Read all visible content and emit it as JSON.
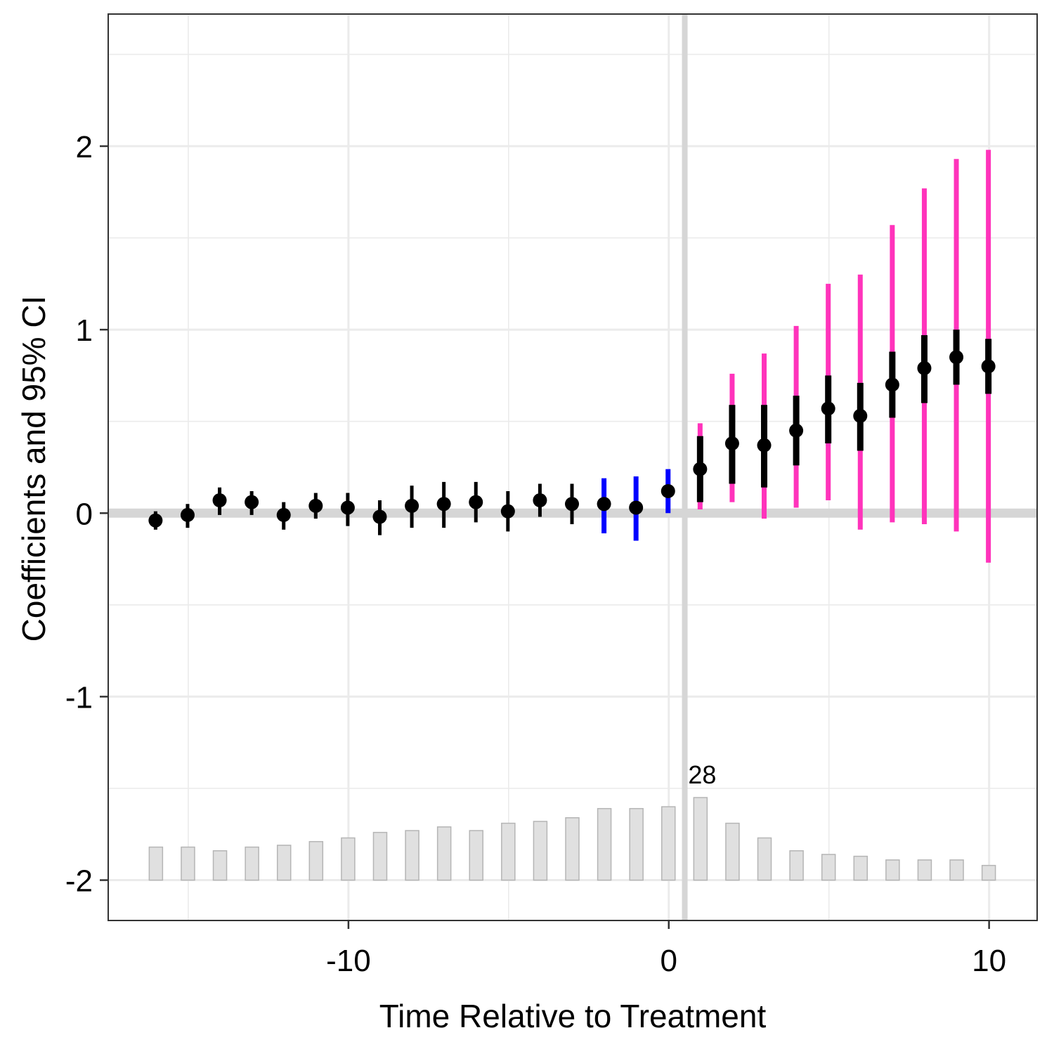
{
  "chart_data": {
    "type": "scatter",
    "title": "",
    "xlabel": "Time Relative to Treatment",
    "ylabel": "Coefficients and 95% CI",
    "xlim": [
      -17.5,
      11.5
    ],
    "ylim": [
      -2.22,
      2.72
    ],
    "x_ticks": [
      -10,
      0,
      10
    ],
    "x_tick_labels": [
      "-10",
      "0",
      "10"
    ],
    "y_ticks": [
      -2,
      -1,
      0,
      1,
      2
    ],
    "y_tick_labels": [
      "-2",
      "-1",
      "0",
      "1",
      "2"
    ],
    "grid": true,
    "legend": "none",
    "reference_lines": {
      "h": 0,
      "v": 0.5
    },
    "series": [
      {
        "x": [
          -16,
          -15,
          -14,
          -13,
          -12,
          -11,
          -10,
          -9,
          -8,
          -7,
          -6,
          -5,
          -4,
          -3,
          -2,
          -1,
          0,
          1,
          2,
          3,
          4,
          5,
          6,
          7,
          8,
          9,
          10
        ],
        "estimate": [
          -0.04,
          -0.01,
          0.07,
          0.06,
          -0.01,
          0.04,
          0.03,
          -0.02,
          0.04,
          0.05,
          0.06,
          0.01,
          0.07,
          0.05,
          0.05,
          0.03,
          0.12,
          0.24,
          0.38,
          0.37,
          0.45,
          0.57,
          0.53,
          0.7,
          0.79,
          0.85,
          0.8
        ],
        "ci_low": [
          -0.09,
          -0.08,
          -0.01,
          -0.01,
          -0.09,
          -0.03,
          -0.07,
          -0.12,
          -0.08,
          -0.08,
          -0.05,
          -0.1,
          -0.02,
          -0.06,
          -0.11,
          -0.15,
          0.0,
          0.06,
          0.16,
          0.14,
          0.26,
          0.38,
          0.34,
          0.52,
          0.6,
          0.7,
          0.65
        ],
        "ci_high": [
          0.01,
          0.05,
          0.14,
          0.12,
          0.06,
          0.11,
          0.11,
          0.07,
          0.15,
          0.17,
          0.17,
          0.12,
          0.16,
          0.16,
          0.19,
          0.2,
          0.24,
          0.42,
          0.59,
          0.59,
          0.64,
          0.75,
          0.71,
          0.88,
          0.97,
          1.0,
          0.95
        ],
        "alt_ci_low": [
          null,
          null,
          null,
          null,
          null,
          null,
          null,
          null,
          null,
          null,
          null,
          null,
          null,
          null,
          null,
          null,
          null,
          0.02,
          0.06,
          -0.03,
          0.03,
          0.07,
          -0.09,
          -0.05,
          -0.06,
          -0.1,
          -0.27
        ],
        "alt_ci_high": [
          null,
          null,
          null,
          null,
          null,
          null,
          null,
          null,
          null,
          null,
          null,
          null,
          null,
          null,
          null,
          null,
          null,
          0.49,
          0.76,
          0.87,
          1.02,
          1.25,
          1.3,
          1.57,
          1.77,
          1.93,
          1.98
        ]
      }
    ],
    "highlight_x": [
      -2,
      -1,
      0
    ],
    "colors": {
      "point": "#000000",
      "ci": "#000000",
      "highlight_ci": "#0000ff",
      "alt_ci": "#ff33bb",
      "bar_fill": "#e0e0e0",
      "bar_stroke": "#b5b5b5",
      "ref_line": "#d6d6d6",
      "grid": "#ebebeb"
    },
    "bars": {
      "x": [
        -16,
        -15,
        -14,
        -13,
        -12,
        -11,
        -10,
        -9,
        -8,
        -7,
        -6,
        -5,
        -4,
        -3,
        -2,
        -1,
        0,
        1,
        2,
        3,
        4,
        5,
        6,
        7,
        8,
        9,
        10
      ],
      "heights": [
        0.18,
        0.18,
        0.16,
        0.18,
        0.19,
        0.21,
        0.23,
        0.26,
        0.27,
        0.29,
        0.27,
        0.31,
        0.32,
        0.34,
        0.39,
        0.39,
        0.4,
        0.45,
        0.31,
        0.23,
        0.16,
        0.14,
        0.13,
        0.11,
        0.11,
        0.11,
        0.08
      ],
      "base": -2,
      "annotated_x": 1,
      "annotation": "28"
    }
  }
}
